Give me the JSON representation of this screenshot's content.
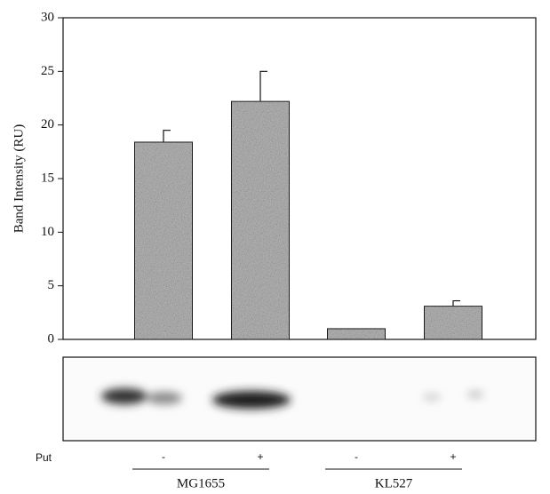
{
  "chart_data": {
    "type": "bar",
    "ylabel": "Band Intensity (RU)",
    "row_label": "Put",
    "categories": [
      "-",
      "+",
      "-",
      "+"
    ],
    "groups": [
      "MG1655",
      "KL527"
    ],
    "values": [
      18.4,
      22.2,
      1.0,
      3.1
    ],
    "errors": [
      1.1,
      2.8,
      null,
      0.5
    ],
    "color": "#bcbcbc",
    "ylim": [
      0,
      30
    ],
    "yticks": [
      0,
      5,
      10,
      15,
      20,
      25,
      30
    ]
  }
}
